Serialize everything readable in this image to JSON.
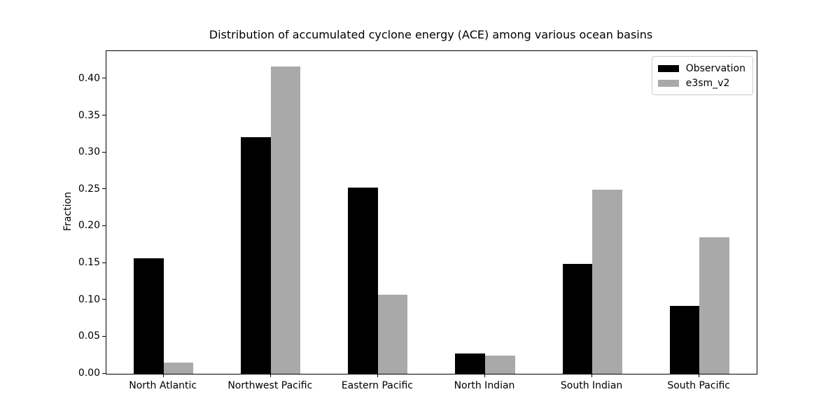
{
  "figure": {
    "background_color": "#ffffff",
    "axis_color": "#000000"
  },
  "chart_data": {
    "type": "bar",
    "title": "Distribution of accumulated cyclone energy (ACE) among various ocean basins",
    "xlabel": "",
    "ylabel": "Fraction",
    "categories": [
      "North Atlantic",
      "Northwest Pacific",
      "Eastern Pacific",
      "North Indian",
      "South Indian",
      "South Pacific"
    ],
    "series": [
      {
        "name": "Observation",
        "color": "#000000",
        "values": [
          0.157,
          0.321,
          0.253,
          0.028,
          0.149,
          0.092
        ]
      },
      {
        "name": "e3sm_v2",
        "color": "#a9a9a9",
        "values": [
          0.015,
          0.417,
          0.107,
          0.025,
          0.25,
          0.185
        ]
      }
    ],
    "ylim": [
      0,
      0.438
    ],
    "yticks": [
      0.0,
      0.05,
      0.1,
      0.15,
      0.2,
      0.25,
      0.3,
      0.35,
      0.4
    ],
    "ytick_label_format": "2-decimals",
    "grid": false,
    "legend_position": "upper right"
  }
}
